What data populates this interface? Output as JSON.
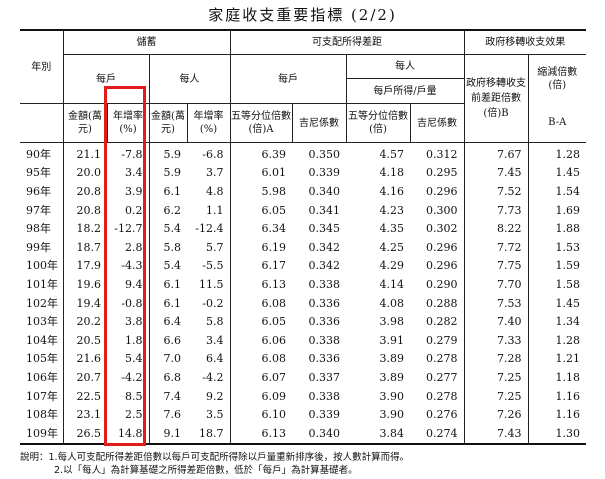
{
  "title": "家庭收支重要指標 (2/2)",
  "headers": {
    "year": "年別",
    "savings": "儲蓄",
    "disposable": "可支配所得差距",
    "gov": "政府移轉收支效果",
    "per_household": "每戶",
    "per_person": "每人",
    "disp_household": "每戶",
    "disp_person": "每人",
    "disp_person_sub": "每戶所得/戶量",
    "amount": "金額(萬元)",
    "growth": "年增率(%)",
    "amount2": "金額(萬元)",
    "growth2": "年增率(%)",
    "quintile": "五等分位倍數(倍)A",
    "gini": "吉尼係數",
    "quintile2": "五等分位倍數(倍)",
    "gini2": "吉尼係數",
    "pre_transfer": "政府移轉收支前差距倍數(倍)B",
    "reduction": "縮減倍數(倍)",
    "reduction_formula": "B-A"
  },
  "rows": [
    [
      "90年",
      "21.1",
      "-7.8",
      "5.9",
      "-6.8",
      "6.39",
      "0.350",
      "4.57",
      "0.312",
      "7.67",
      "1.28"
    ],
    [
      "95年",
      "20.0",
      "3.4",
      "5.9",
      "3.7",
      "6.01",
      "0.339",
      "4.18",
      "0.295",
      "7.45",
      "1.45"
    ],
    [
      "96年",
      "20.8",
      "3.9",
      "6.1",
      "4.8",
      "5.98",
      "0.340",
      "4.16",
      "0.296",
      "7.52",
      "1.54"
    ],
    [
      "97年",
      "20.8",
      "0.2",
      "6.2",
      "1.1",
      "6.05",
      "0.341",
      "4.23",
      "0.300",
      "7.73",
      "1.69"
    ],
    [
      "98年",
      "18.2",
      "-12.7",
      "5.4",
      "-12.4",
      "6.34",
      "0.345",
      "4.35",
      "0.302",
      "8.22",
      "1.88"
    ],
    [
      "99年",
      "18.7",
      "2.8",
      "5.8",
      "5.7",
      "6.19",
      "0.342",
      "4.25",
      "0.296",
      "7.72",
      "1.53"
    ],
    [
      "100年",
      "17.9",
      "-4.3",
      "5.4",
      "-5.5",
      "6.17",
      "0.342",
      "4.29",
      "0.296",
      "7.75",
      "1.59"
    ],
    [
      "101年",
      "19.6",
      "9.4",
      "6.1",
      "11.5",
      "6.13",
      "0.338",
      "4.14",
      "0.290",
      "7.70",
      "1.58"
    ],
    [
      "102年",
      "19.4",
      "-0.8",
      "6.1",
      "-0.2",
      "6.08",
      "0.336",
      "4.08",
      "0.288",
      "7.53",
      "1.45"
    ],
    [
      "103年",
      "20.2",
      "3.8",
      "6.4",
      "5.8",
      "6.05",
      "0.336",
      "3.98",
      "0.282",
      "7.40",
      "1.34"
    ],
    [
      "104年",
      "20.5",
      "1.8",
      "6.6",
      "3.4",
      "6.06",
      "0.338",
      "3.91",
      "0.279",
      "7.33",
      "1.28"
    ],
    [
      "105年",
      "21.6",
      "5.4",
      "7.0",
      "6.4",
      "6.08",
      "0.336",
      "3.89",
      "0.278",
      "7.28",
      "1.21"
    ],
    [
      "106年",
      "20.7",
      "-4.2",
      "6.8",
      "-4.2",
      "6.07",
      "0.337",
      "3.89",
      "0.277",
      "7.25",
      "1.18"
    ],
    [
      "107年",
      "22.5",
      "8.5",
      "7.4",
      "9.2",
      "6.09",
      "0.338",
      "3.90",
      "0.278",
      "7.25",
      "1.16"
    ],
    [
      "108年",
      "23.1",
      "2.5",
      "7.6",
      "3.5",
      "6.10",
      "0.339",
      "3.90",
      "0.276",
      "7.26",
      "1.16"
    ],
    [
      "109年",
      "26.5",
      "14.8",
      "9.1",
      "18.7",
      "6.13",
      "0.340",
      "3.84",
      "0.274",
      "7.43",
      "1.30"
    ]
  ],
  "notes": {
    "note1": "說明：1.每人可支配所得差距倍數以每戶可支配所得除以戶量重新排序後，按人數計算而得。",
    "note2": "2.以「每人」為計算基礎之所得差距倍數，低於「每戶」為計算基礎者。"
  },
  "highlight": {
    "color": "#e21b1b",
    "column": "per_household_growth"
  }
}
